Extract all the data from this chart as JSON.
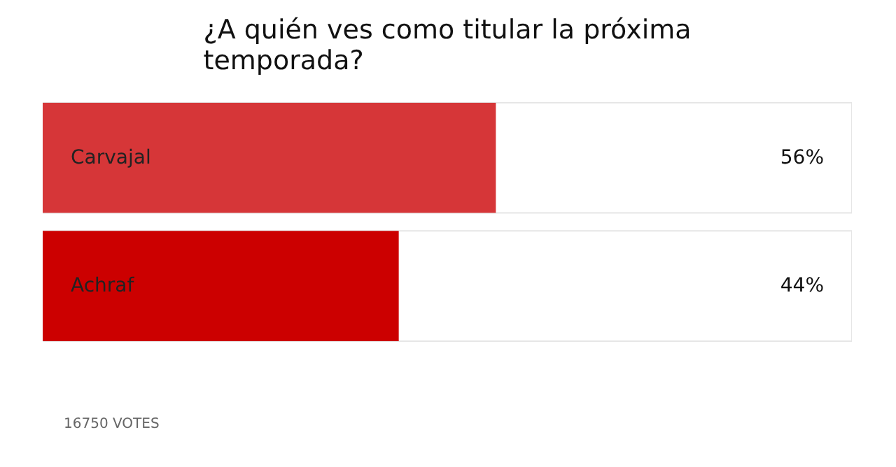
{
  "chart_data": {
    "type": "bar",
    "orientation": "horizontal",
    "title": "¿A quién ves como titular la próxima temporada?",
    "categories": [
      "Carvajal",
      "Achraf"
    ],
    "values": [
      56,
      44
    ],
    "colors": [
      "#d63638",
      "#cc0000"
    ],
    "value_labels": [
      "56%",
      "44%"
    ],
    "xlim": [
      0,
      100
    ],
    "tick_labels": false,
    "grid": false,
    "annotations": [
      "16750 VOTES"
    ]
  }
}
